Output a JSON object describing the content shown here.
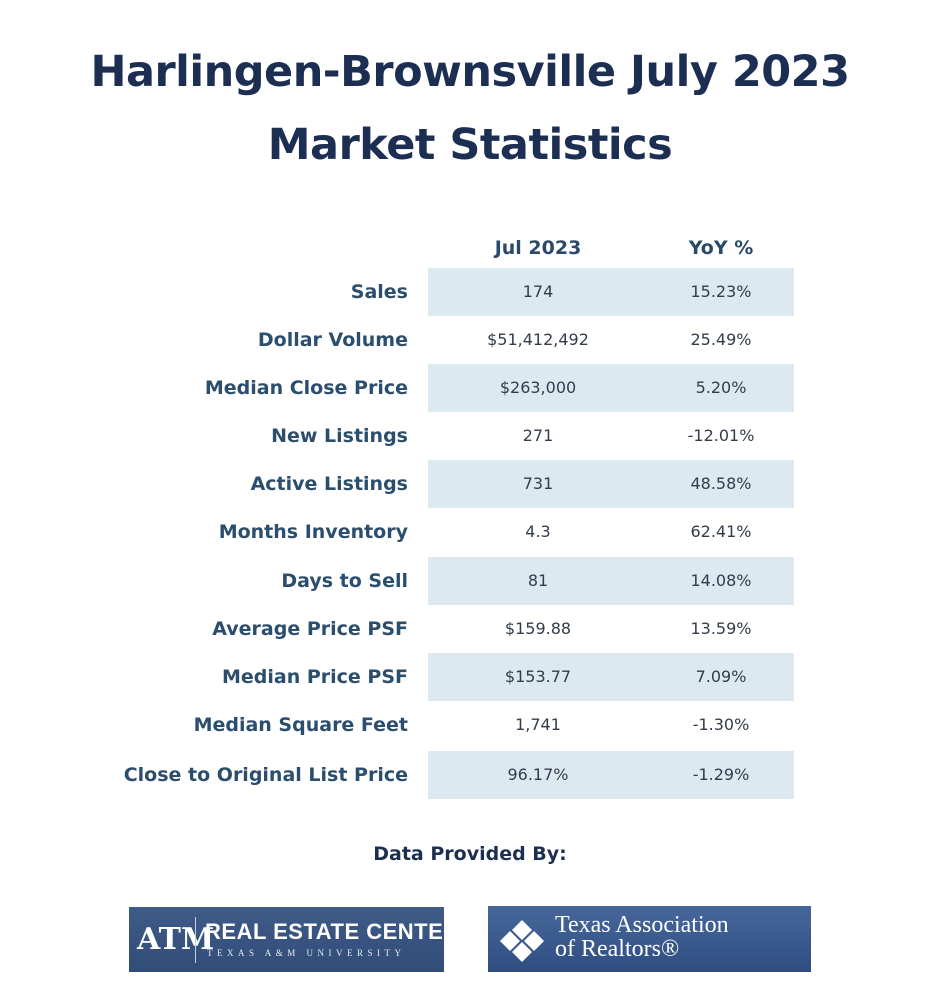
{
  "title": {
    "line1": "Harlingen-Brownsville July 2023",
    "line2": "Market Statistics"
  },
  "table": {
    "columns": [
      "Jul 2023",
      "YoY %"
    ],
    "rows": [
      {
        "label": "Sales",
        "value": "174",
        "yoy": "15.23%"
      },
      {
        "label": "Dollar Volume",
        "value": "$51,412,492",
        "yoy": "25.49%"
      },
      {
        "label": "Median Close Price",
        "value": "$263,000",
        "yoy": "5.20%"
      },
      {
        "label": "New Listings",
        "value": "271",
        "yoy": "-12.01%"
      },
      {
        "label": "Active Listings",
        "value": "731",
        "yoy": "48.58%"
      },
      {
        "label": "Months Inventory",
        "value": "4.3",
        "yoy": "62.41%"
      },
      {
        "label": "Days to Sell",
        "value": "81",
        "yoy": "14.08%"
      },
      {
        "label": "Average Price PSF",
        "value": "$159.88",
        "yoy": "13.59%"
      },
      {
        "label": "Median Price PSF",
        "value": "$153.77",
        "yoy": "7.09%"
      },
      {
        "label": "Median Square Feet",
        "value": "1,741",
        "yoy": "-1.30%"
      },
      {
        "label": "Close to Original List Price",
        "value": "96.17%",
        "yoy": "-1.29%"
      }
    ]
  },
  "credit": "Data Provided By:",
  "logos": {
    "rec": {
      "mark": "ATM",
      "name": "REAL ESTATE CENTER",
      "subtitle": "TEXAS A&M UNIVERSITY"
    },
    "tar": {
      "line1": "Texas Association",
      "line2": "of Realtors®"
    }
  },
  "colors": {
    "title": "#1c2f52",
    "label": "#2b4d6e",
    "band": "#dde9f0",
    "logo_bg": "#3b578a"
  }
}
